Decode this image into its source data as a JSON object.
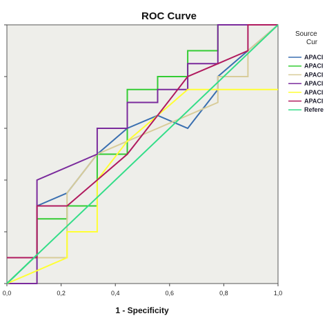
{
  "chart_data": {
    "type": "line",
    "title": "ROC Curve",
    "xlabel": "1 - Specificity",
    "ylabel": "",
    "xlim": [
      0,
      1
    ],
    "ylim": [
      0,
      1
    ],
    "x_ticks": [
      "0,0",
      "0,2",
      "0,4",
      "0,6",
      "0,8",
      "1,0"
    ],
    "grid": false,
    "legend": {
      "title_lines": [
        "Source",
        "Cur"
      ],
      "placement": "right",
      "entries": [
        "APACI",
        "APACI",
        "APACI",
        "APACI",
        "APACI",
        "APACI",
        "Refere"
      ]
    },
    "series": [
      {
        "color": "#3a6fb0",
        "x": [
          0,
          0.111,
          0.111,
          0.222,
          0.333,
          0.444,
          0.556,
          0.667,
          0.778,
          0.778,
          0.889,
          1.0
        ],
        "y": [
          0,
          0.111,
          0.3,
          0.35,
          0.5,
          0.6,
          0.65,
          0.6,
          0.75,
          0.8,
          0.9,
          1.0
        ]
      },
      {
        "color": "#33cc33",
        "x": [
          0,
          0.111,
          0.111,
          0.222,
          0.222,
          0.333,
          0.333,
          0.444,
          0.444,
          0.556,
          0.556,
          0.667,
          0.667,
          0.778,
          0.778,
          1.0
        ],
        "y": [
          0,
          0.111,
          0.25,
          0.25,
          0.3,
          0.3,
          0.5,
          0.5,
          0.75,
          0.75,
          0.8,
          0.8,
          0.9,
          0.9,
          1.0,
          1.0
        ]
      },
      {
        "color": "#d8cc99",
        "x": [
          0,
          0.111,
          0.111,
          0.222,
          0.222,
          0.333,
          0.444,
          0.556,
          0.667,
          0.778,
          0.778,
          0.889,
          0.889,
          1.0
        ],
        "y": [
          0,
          0.0,
          0.1,
          0.1,
          0.35,
          0.5,
          0.55,
          0.6,
          0.65,
          0.7,
          0.8,
          0.8,
          0.9,
          1.0
        ]
      },
      {
        "color": "#7a2a9c",
        "x": [
          0,
          0.111,
          0.111,
          0.333,
          0.333,
          0.444,
          0.444,
          0.556,
          0.556,
          0.667,
          0.667,
          0.778,
          0.778,
          0.889,
          0.889,
          1.0
        ],
        "y": [
          0,
          0.0,
          0.4,
          0.5,
          0.6,
          0.6,
          0.7,
          0.7,
          0.75,
          0.75,
          0.85,
          0.85,
          1.0,
          1.0,
          1.0,
          1.0
        ]
      },
      {
        "color": "#ffff33",
        "x": [
          0,
          0.111,
          0.222,
          0.222,
          0.333,
          0.333,
          0.444,
          0.556,
          0.667,
          0.778,
          0.889,
          1.0
        ],
        "y": [
          0,
          0.05,
          0.1,
          0.2,
          0.2,
          0.4,
          0.55,
          0.65,
          0.75,
          0.75,
          0.75,
          0.75
        ]
      },
      {
        "color": "#b01a5e",
        "x": [
          0,
          0.111,
          0.111,
          0.222,
          0.333,
          0.444,
          0.556,
          0.667,
          0.778,
          0.889,
          0.889,
          1.0
        ],
        "y": [
          0.1,
          0.1,
          0.3,
          0.3,
          0.4,
          0.5,
          0.65,
          0.8,
          0.85,
          0.9,
          1.0,
          1.0
        ]
      },
      {
        "color": "#33dd88",
        "x": [
          0,
          1
        ],
        "y": [
          0,
          1
        ]
      }
    ]
  }
}
